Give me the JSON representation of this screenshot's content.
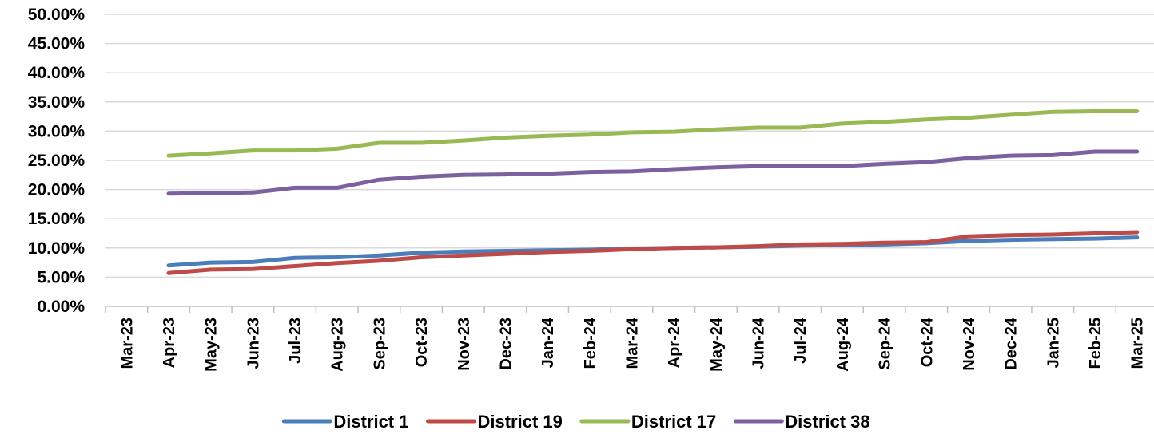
{
  "chart_data": {
    "type": "line",
    "title": "",
    "xlabel": "",
    "ylabel": "",
    "ylim": [
      0,
      0.5
    ],
    "y_ticks": [
      "0.00%",
      "5.00%",
      "10.00%",
      "15.00%",
      "20.00%",
      "25.00%",
      "30.00%",
      "35.00%",
      "40.00%",
      "45.00%",
      "50.00%"
    ],
    "grid": true,
    "legend_position": "bottom",
    "categories": [
      "Mar-23",
      "Apr-23",
      "May-23",
      "Jun-23",
      "Jul-23",
      "Aug-23",
      "Sep-23",
      "Oct-23",
      "Nov-23",
      "Dec-23",
      "Jan-24",
      "Feb-24",
      "Mar-24",
      "Apr-24",
      "May-24",
      "Jun-24",
      "Jul-24",
      "Aug-24",
      "Sep-24",
      "Oct-24",
      "Nov-24",
      "Dec-24",
      "Jan-25",
      "Feb-25",
      "Mar-25"
    ],
    "series": [
      {
        "name": "District 1",
        "color": "#4a7ebb",
        "values": [
          null,
          0.07,
          0.075,
          0.076,
          0.083,
          0.084,
          0.087,
          0.092,
          0.094,
          0.095,
          0.096,
          0.097,
          0.099,
          0.1,
          0.101,
          0.102,
          0.104,
          0.105,
          0.106,
          0.108,
          0.112,
          0.114,
          0.115,
          0.116,
          0.118
        ]
      },
      {
        "name": "District 19",
        "color": "#be4b48",
        "values": [
          null,
          0.057,
          0.063,
          0.064,
          0.069,
          0.074,
          0.078,
          0.084,
          0.087,
          0.09,
          0.093,
          0.095,
          0.098,
          0.1,
          0.101,
          0.103,
          0.106,
          0.107,
          0.109,
          0.11,
          0.12,
          0.122,
          0.123,
          0.125,
          0.127
        ]
      },
      {
        "name": "District 17",
        "color": "#98b954",
        "values": [
          null,
          0.258,
          0.262,
          0.267,
          0.267,
          0.27,
          0.28,
          0.28,
          0.284,
          0.289,
          0.292,
          0.294,
          0.298,
          0.299,
          0.303,
          0.306,
          0.306,
          0.313,
          0.316,
          0.32,
          0.323,
          0.328,
          0.333,
          0.334,
          0.334
        ]
      },
      {
        "name": "District 38",
        "color": "#7d60a0",
        "values": [
          null,
          0.193,
          0.194,
          0.195,
          0.203,
          0.203,
          0.217,
          0.222,
          0.225,
          0.226,
          0.227,
          0.23,
          0.231,
          0.235,
          0.238,
          0.24,
          0.24,
          0.24,
          0.244,
          0.247,
          0.254,
          0.258,
          0.259,
          0.265,
          0.265
        ]
      }
    ]
  }
}
